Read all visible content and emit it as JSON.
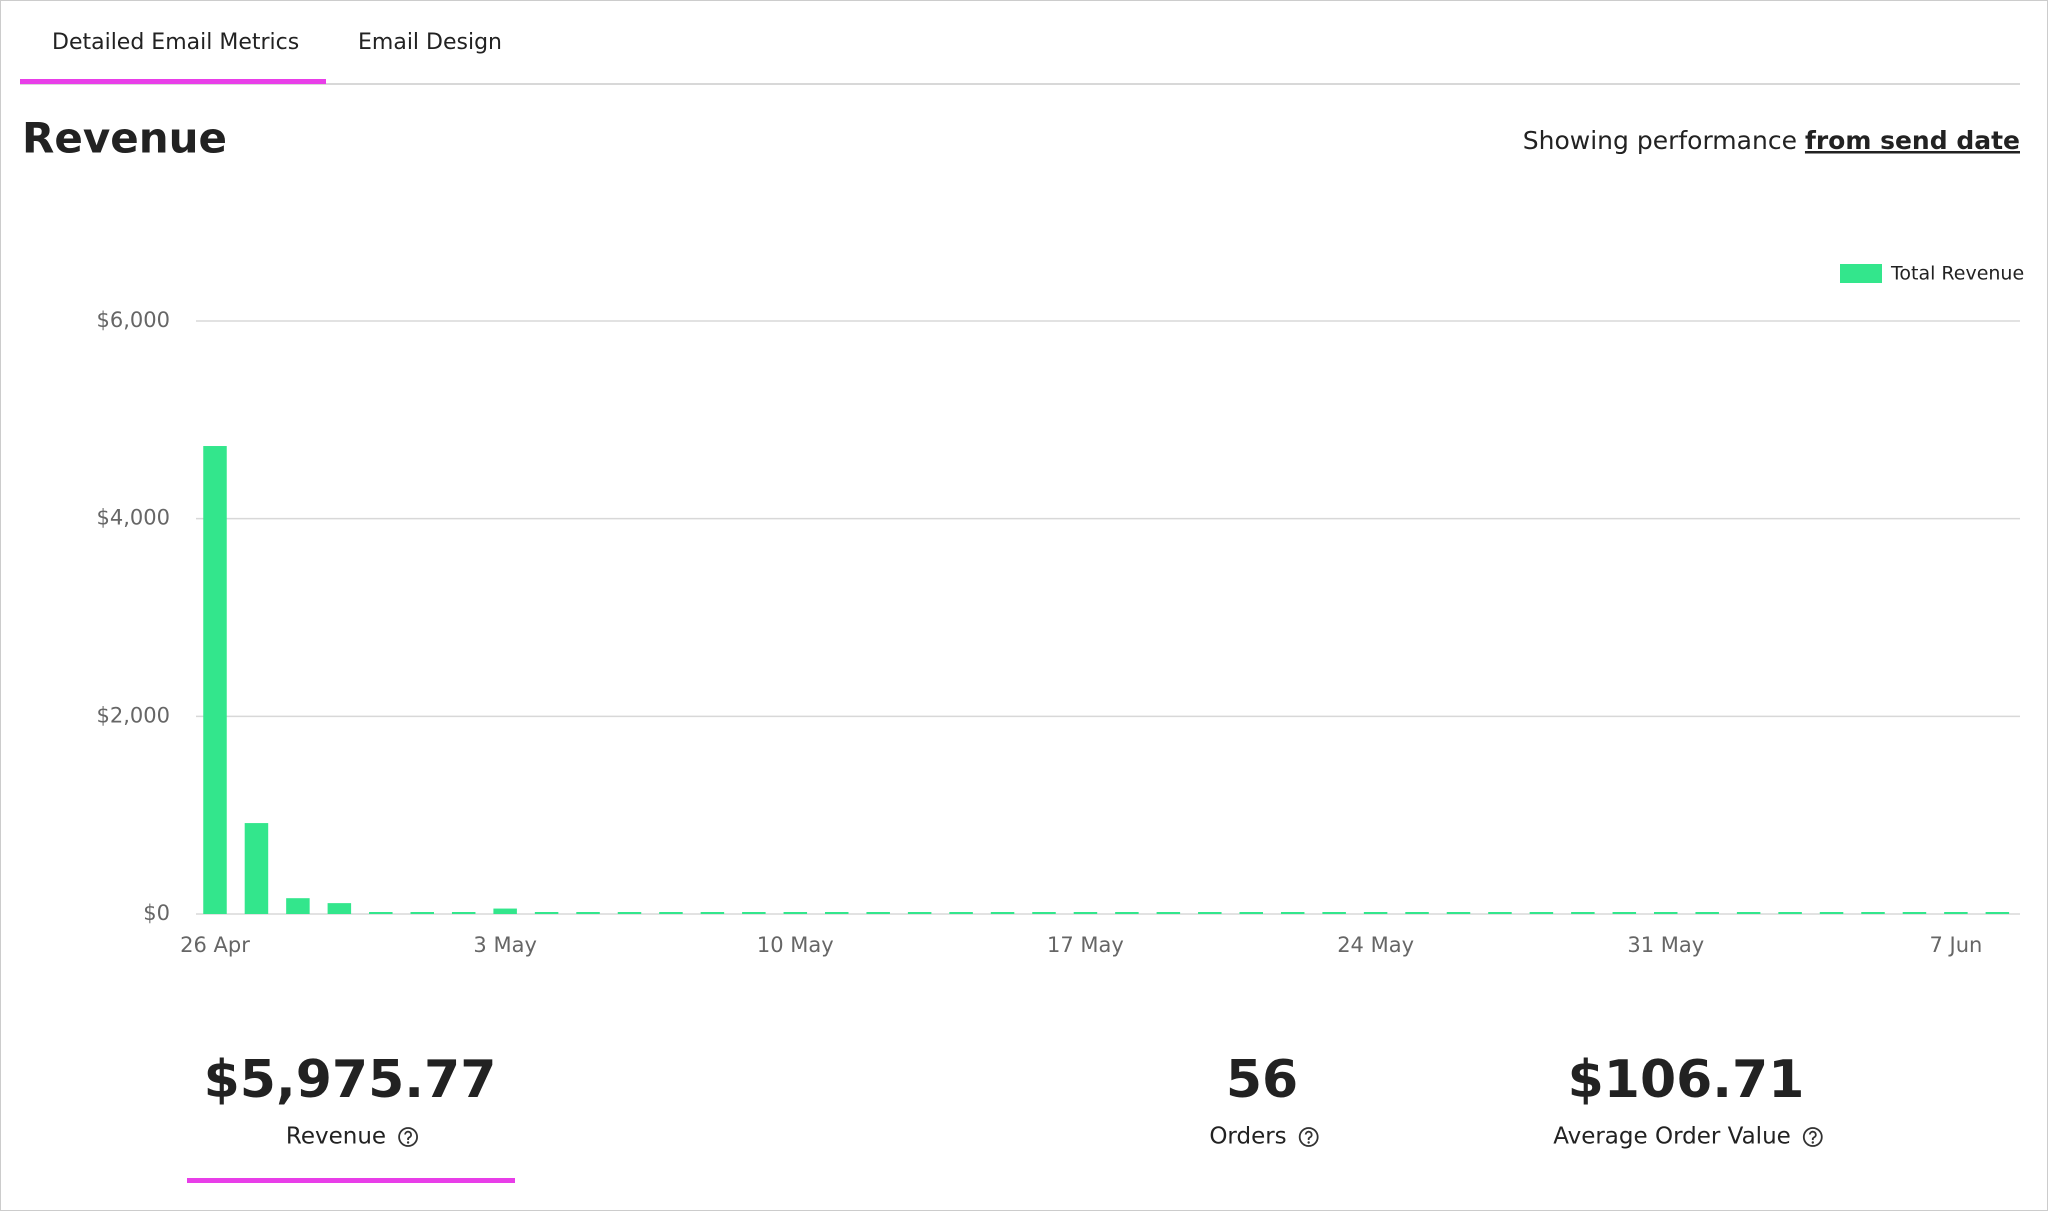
{
  "tabs": [
    "Detailed Email Metrics",
    "Email Design"
  ],
  "title": "Revenue",
  "performance": {
    "text": "Showing performance",
    "link": "from send date"
  },
  "chart_data": {
    "type": "bar",
    "series": [
      {
        "name": "Total Revenue",
        "color": "#33e68c",
        "values": [
          4735,
          920,
          160,
          110,
          0,
          0,
          0,
          55,
          0,
          0,
          0,
          0,
          0,
          0,
          0,
          0,
          0,
          0,
          0,
          0,
          0,
          0,
          0,
          0,
          0,
          0,
          0,
          0,
          0,
          0,
          0,
          0,
          0,
          0,
          0,
          0,
          0,
          0,
          0,
          0,
          0,
          0,
          0,
          0
        ]
      }
    ],
    "categories": [
      "26 Apr",
      null,
      null,
      null,
      null,
      null,
      null,
      "3 May",
      null,
      null,
      null,
      null,
      null,
      null,
      "10 May",
      null,
      null,
      null,
      null,
      null,
      null,
      "17 May",
      null,
      null,
      null,
      null,
      null,
      null,
      "24 May",
      null,
      null,
      null,
      null,
      null,
      null,
      "31 May",
      null,
      null,
      null,
      null,
      null,
      null,
      "7 Jun",
      null
    ],
    "ylim": [
      0,
      6000
    ],
    "yticks": [
      {
        "value": 0,
        "label": "$0"
      },
      {
        "value": 2000,
        "label": "$2,000"
      },
      {
        "value": 4000,
        "label": "$4,000"
      },
      {
        "value": 6000,
        "label": "$6,000"
      }
    ],
    "grid": true,
    "legend": "top-right"
  },
  "stats": [
    {
      "value": "$5,975.77",
      "label": "Revenue"
    },
    {
      "value": "56",
      "label": "Orders"
    },
    {
      "value": "$106.71",
      "label": "Average Order Value"
    }
  ]
}
